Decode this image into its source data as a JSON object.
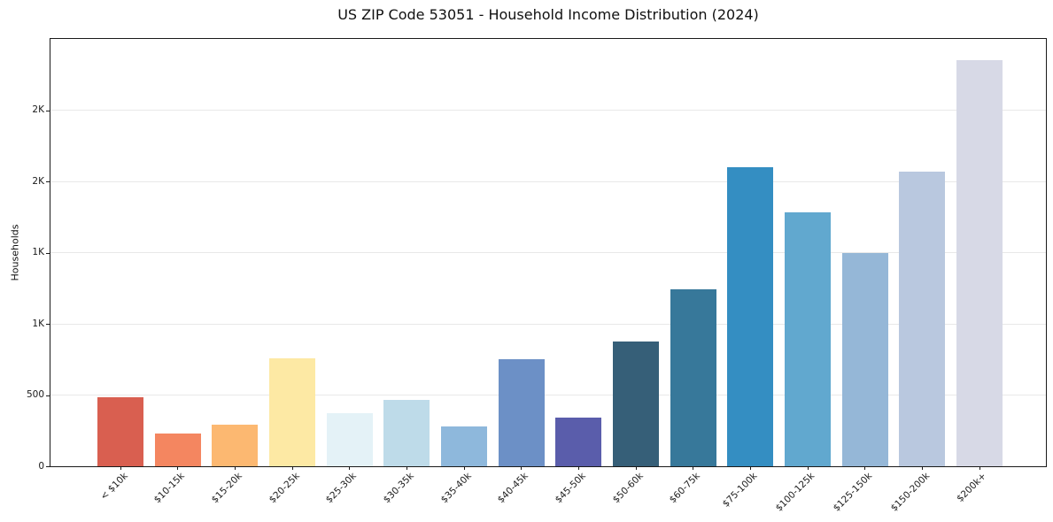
{
  "chart_data": {
    "type": "bar",
    "title": "US ZIP Code 53051 - Household Income Distribution (2024)",
    "xlabel": "",
    "ylabel": "Households",
    "ylim": [
      0,
      3000
    ],
    "grid": "horizontal",
    "legend": "none",
    "categories": [
      "< $10k",
      "$10-15k",
      "$15-20k",
      "$20-25k",
      "$25-30k",
      "$30-35k",
      "$35-40k",
      "$40-45k",
      "$45-50k",
      "$50-60k",
      "$60-75k",
      "$75-100k",
      "$100-125k",
      "$125-150k",
      "$150-200k",
      "$200k+"
    ],
    "values": [
      485,
      230,
      290,
      760,
      370,
      465,
      280,
      750,
      340,
      875,
      1245,
      2100,
      1780,
      1500,
      2070,
      2850
    ],
    "bar_colors": [
      "#d95f50",
      "#f48660",
      "#fcb871",
      "#fde9a4",
      "#e4f2f7",
      "#bedbe9",
      "#8eb8dc",
      "#6c90c6",
      "#5a5dab",
      "#365f78",
      "#37789a",
      "#348ec2",
      "#61a8cf",
      "#95b7d7",
      "#b9c8df",
      "#d7d9e6"
    ],
    "yticks": [
      {
        "value": 0,
        "label": "0"
      },
      {
        "value": 500,
        "label": "500"
      },
      {
        "value": 1000,
        "label": "1K"
      },
      {
        "value": 1500,
        "label": "1K"
      },
      {
        "value": 2000,
        "label": "2K"
      },
      {
        "value": 2500,
        "label": "2K"
      }
    ],
    "x_label_rotation_deg": 45,
    "spine_color": "#1a1a1a",
    "gridline_color": "#e8e8e8",
    "background_color": "#ffffff"
  }
}
